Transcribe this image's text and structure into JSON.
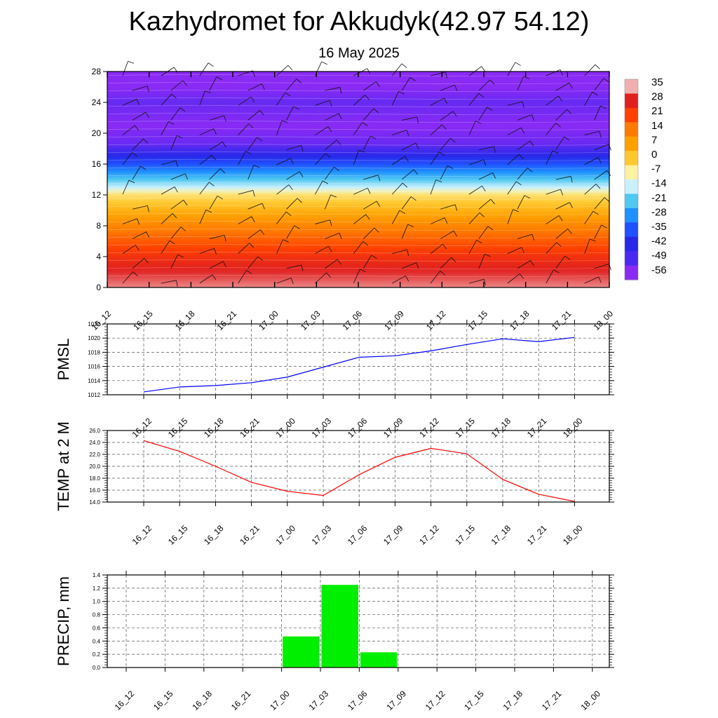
{
  "header": {
    "title": "Kazhydromet for Akkudyk(42.97 54.12)",
    "subtitle": "16 May 2025"
  },
  "chart_data": [
    {
      "type": "heatmap",
      "title": "",
      "xlabel": "",
      "ylabel": "",
      "x_ticks": [
        "16_12",
        "16_15",
        "16_18",
        "16_21",
        "17_00",
        "17_03",
        "17_06",
        "17_09",
        "17_12",
        "17_15",
        "17_18",
        "17_21",
        "18_00"
      ],
      "y_ticks": [
        0,
        4,
        8,
        12,
        16,
        20,
        24,
        28
      ],
      "ylim": [
        0,
        28
      ],
      "colorbar_labels": [
        "35",
        "28",
        "21",
        "14",
        "7",
        "0",
        "-7",
        "-14",
        "-21",
        "-28",
        "-35",
        "-42",
        "-49",
        "-56"
      ],
      "colorbar_colors": [
        "#f0b0b0",
        "#e02020",
        "#ff4000",
        "#ff7a00",
        "#ffa000",
        "#ffc830",
        "#fff2a0",
        "#c8f0ff",
        "#50c8f0",
        "#1e90ff",
        "#2050ff",
        "#2828e8",
        "#4a2af0",
        "#8a2af5"
      ],
      "level_profile": [
        {
          "y": 0,
          "t": 33
        },
        {
          "y": 4,
          "t": 24
        },
        {
          "y": 8,
          "t": 12
        },
        {
          "y": 12,
          "t": -4
        },
        {
          "y": 13,
          "t": -14
        },
        {
          "y": 16,
          "t": -35
        },
        {
          "y": 18.5,
          "t": -52
        },
        {
          "y": 21,
          "t": -56
        },
        {
          "y": 24,
          "t": -52
        },
        {
          "y": 26,
          "t": -56
        },
        {
          "y": 28,
          "t": -60
        }
      ],
      "wind_barbs": true
    },
    {
      "type": "line",
      "ylabel": "PMSL",
      "categories": [
        "16_12",
        "16_15",
        "16_18",
        "16_21",
        "17_00",
        "17_03",
        "17_06",
        "17_09",
        "17_12",
        "17_15",
        "17_18",
        "17_21",
        "18_00"
      ],
      "y_ticks": [
        "1012",
        "1014",
        "1016",
        "1018",
        "1020",
        "1022"
      ],
      "ylim": [
        1012,
        1022
      ],
      "values": [
        1012.4,
        1013.1,
        1013.3,
        1013.7,
        1014.5,
        1015.9,
        1017.3,
        1017.5,
        1018.2,
        1019.1,
        1019.9,
        1019.5,
        1020.1
      ],
      "color": "#0000ff",
      "grid": true
    },
    {
      "type": "line",
      "ylabel": "TEMP at 2 M",
      "categories": [
        "16_12",
        "16_15",
        "16_18",
        "16_21",
        "17_00",
        "17_03",
        "17_06",
        "17_09",
        "17_12",
        "17_15",
        "17_18",
        "17_21",
        "18_00"
      ],
      "y_ticks": [
        "14.0",
        "16.0",
        "18.0",
        "20.0",
        "22.0",
        "24.0",
        "26.0"
      ],
      "ylim": [
        14,
        26
      ],
      "values": [
        24.3,
        22.5,
        20.0,
        17.3,
        15.8,
        15.1,
        18.6,
        21.5,
        23.0,
        22.1,
        17.8,
        15.3,
        14.1
      ],
      "color": "#ff0000",
      "grid": true
    },
    {
      "type": "bar",
      "ylabel": "PRECIP, mm",
      "categories": [
        "16_12",
        "16_15",
        "16_18",
        "16_21",
        "17_00",
        "17_03",
        "17_06",
        "17_09",
        "17_12",
        "17_15",
        "17_18",
        "17_21",
        "18_00"
      ],
      "y_ticks": [
        "0.0",
        "0.2",
        "0.4",
        "0.6",
        "0.8",
        "1.0",
        "1.2",
        "1.4"
      ],
      "ylim": [
        0,
        1.4
      ],
      "values": [
        0,
        0,
        0,
        0,
        0.47,
        1.25,
        0.23,
        0,
        0,
        0,
        0,
        0,
        0
      ],
      "color": "#00ee00",
      "grid": true
    }
  ]
}
